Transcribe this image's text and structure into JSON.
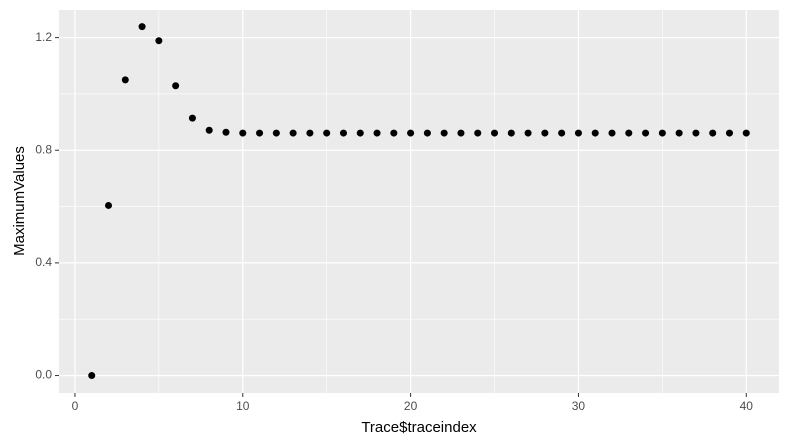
{
  "chart_data": {
    "type": "scatter",
    "x_label": "Trace$traceindex",
    "y_label": "MaximumValues",
    "x": [
      1,
      2,
      3,
      4,
      5,
      6,
      7,
      8,
      9,
      10,
      11,
      12,
      13,
      14,
      15,
      16,
      17,
      18,
      19,
      20,
      21,
      22,
      23,
      24,
      25,
      26,
      27,
      28,
      29,
      30,
      31,
      32,
      33,
      34,
      35,
      36,
      37,
      38,
      39,
      40
    ],
    "values": [
      0,
      0.604,
      1.05,
      1.239,
      1.189,
      1.029,
      0.914,
      0.871,
      0.864,
      0.861,
      0.861,
      0.861,
      0.861,
      0.861,
      0.861,
      0.861,
      0.861,
      0.861,
      0.861,
      0.861,
      0.861,
      0.861,
      0.861,
      0.861,
      0.861,
      0.861,
      0.861,
      0.861,
      0.861,
      0.861,
      0.861,
      0.861,
      0.861,
      0.861,
      0.861,
      0.861,
      0.861,
      0.861,
      0.861,
      0.861
    ],
    "color": "#000000",
    "xlim": [
      -0.95,
      41.95
    ],
    "xticks": [
      0,
      10,
      20,
      30,
      40
    ],
    "ylim": [
      -0.062,
      1.298
    ],
    "yticks": [
      {
        "value": 0,
        "label": "0.0"
      },
      0.4,
      0.8,
      1.2
    ],
    "grid": true
  }
}
